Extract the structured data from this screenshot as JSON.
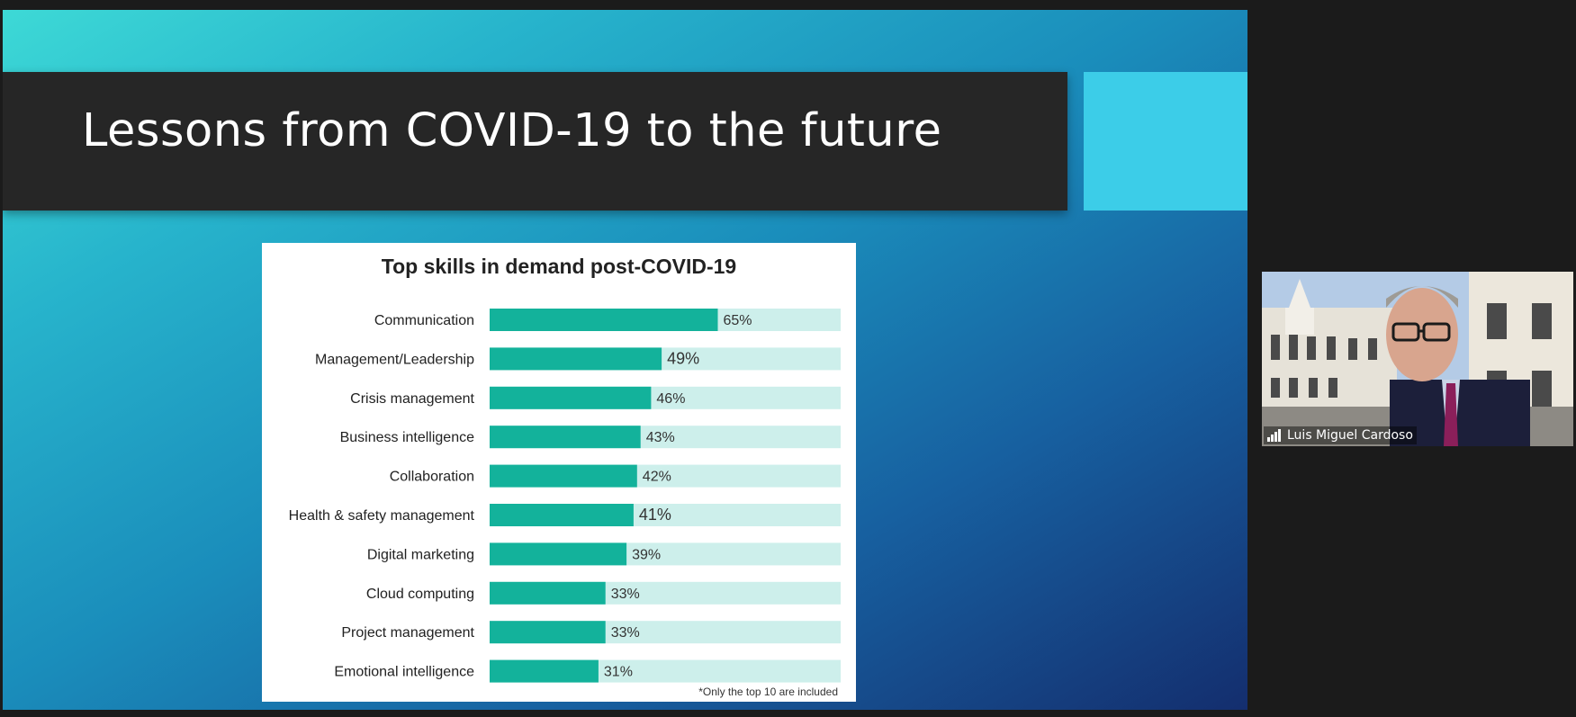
{
  "slide": {
    "title": "Lessons from COVID-19 to the future"
  },
  "colors": {
    "title_bar": "#262626",
    "accent_box": "#3ccde8",
    "bar_fill": "#13b29b",
    "bar_track": "#cdefeb"
  },
  "chart_data": {
    "type": "bar",
    "orientation": "horizontal",
    "title": "Top skills in demand post-COVID-19",
    "categories": [
      "Communication",
      "Management/Leadership",
      "Crisis management",
      "Business intelligence",
      "Collaboration",
      "Health & safety management",
      "Digital marketing",
      "Cloud computing",
      "Project management",
      "Emotional intelligence"
    ],
    "values": [
      65,
      49,
      46,
      43,
      42,
      41,
      39,
      33,
      33,
      31
    ],
    "value_labels": [
      "65%",
      "49%",
      "46%",
      "43%",
      "42%",
      "41%",
      "39%",
      "33%",
      "33%",
      "31%"
    ],
    "xlim": [
      0,
      100
    ],
    "grid": false,
    "note": "*Only the top 10 are included"
  },
  "participant": {
    "name": "Luis Miguel Cardoso",
    "signal_icon": "signal-bars-icon"
  }
}
